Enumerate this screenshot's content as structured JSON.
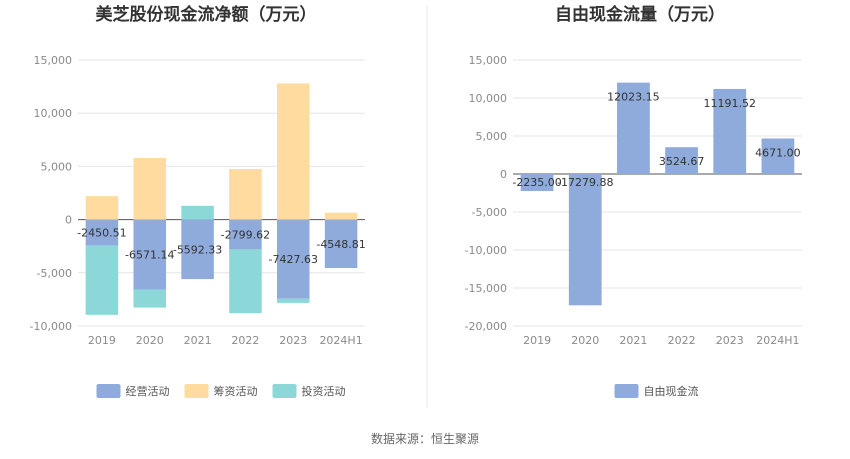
{
  "chart_data": [
    {
      "type": "bar",
      "stacked": true,
      "title": "美芝股份现金流净额（万元）",
      "categories": [
        "2019",
        "2020",
        "2021",
        "2022",
        "2023",
        "2024H1"
      ],
      "ylim": [
        -10000,
        15000
      ],
      "yticks": [
        15000,
        10000,
        5000,
        0,
        -5000,
        -10000
      ],
      "ytick_labels": [
        "15,000",
        "10,000",
        "5,000",
        "0",
        "-5,000",
        "-10,000"
      ],
      "grid": true,
      "legend_position": "bottom",
      "series": [
        {
          "name": "经营活动",
          "color": "#8eabdb",
          "values": [
            -2450.51,
            -6571.14,
            -5592.33,
            -2799.62,
            -7427.63,
            -4548.81
          ],
          "labels": [
            "-2450.51",
            "-6571.14",
            "-5592.33",
            "-2799.62",
            "-7427.63",
            "-4548.81"
          ]
        },
        {
          "name": "筹资活动",
          "color": "#ffdba0",
          "values": [
            2200,
            5800,
            0,
            4750,
            12800,
            650
          ]
        },
        {
          "name": "投资活动",
          "color": "#8cd8d8",
          "values": [
            -6500,
            -1700,
            1300,
            -6000,
            -400,
            0
          ]
        }
      ]
    },
    {
      "type": "bar",
      "title": "自由现金流量（万元）",
      "categories": [
        "2019",
        "2020",
        "2021",
        "2022",
        "2023",
        "2024H1"
      ],
      "ylim": [
        -20000,
        15000
      ],
      "yticks": [
        15000,
        10000,
        5000,
        0,
        -5000,
        -10000,
        -15000,
        -20000
      ],
      "ytick_labels": [
        "15,000",
        "10,000",
        "5,000",
        "0",
        "-5,000",
        "-10,000",
        "-15,000",
        "-20,000"
      ],
      "grid": true,
      "legend_position": "bottom",
      "series": [
        {
          "name": "自由现金流",
          "color": "#8eabdb",
          "values": [
            -2235.0,
            -17279.88,
            12023.15,
            3524.67,
            11191.52,
            4671.0
          ],
          "labels": [
            "-2235.00",
            "-17279.88",
            "12023.15",
            "3524.67",
            "11191.52",
            "4671.00"
          ]
        }
      ]
    }
  ],
  "source_text": "数据来源：恒生聚源"
}
